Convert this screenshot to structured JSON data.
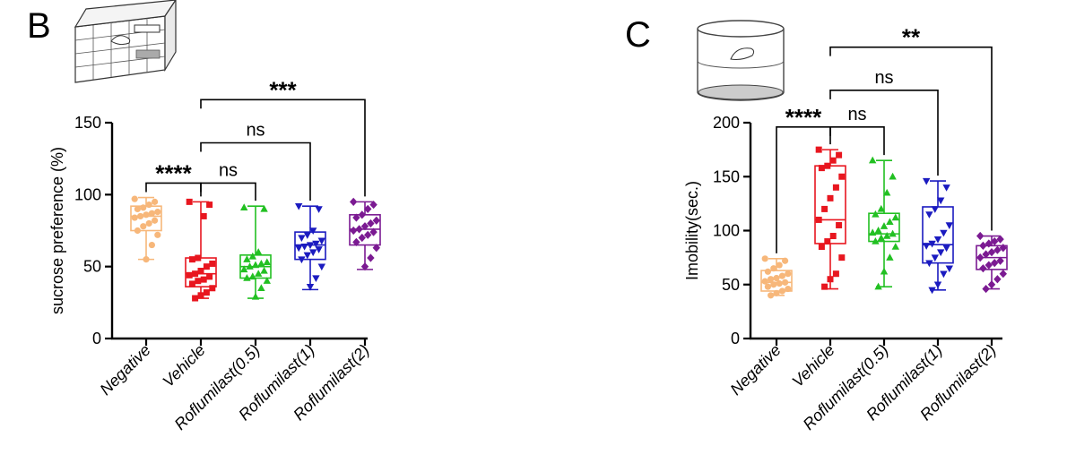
{
  "chart_data": [
    {
      "panel": "B",
      "type": "boxplot",
      "ylabel": "sucrose preference  (%)",
      "ylim": [
        0,
        150
      ],
      "yticks": [
        0,
        50,
        100,
        150
      ],
      "categories": [
        "Negative",
        "Vehicle",
        "Roflumilast(0.5)",
        "Roflumilast(1)",
        "Roflumilast(2)"
      ],
      "colors": [
        "#F7B77A",
        "#E8161F",
        "#22C022",
        "#1B1BC0",
        "#7B1A92"
      ],
      "boxes": [
        {
          "min": 55,
          "q1": 75,
          "median": 85,
          "q3": 92,
          "max": 98
        },
        {
          "min": 28,
          "q1": 36,
          "median": 45,
          "q3": 56,
          "max": 95
        },
        {
          "min": 28,
          "q1": 42,
          "median": 50,
          "q3": 58,
          "max": 92
        },
        {
          "min": 34,
          "q1": 55,
          "median": 65,
          "q3": 74,
          "max": 92
        },
        {
          "min": 48,
          "q1": 65,
          "median": 76,
          "q3": 86,
          "max": 95
        }
      ],
      "points": [
        [
          97,
          95,
          93,
          91,
          90,
          88,
          87,
          86,
          85,
          84,
          82,
          80,
          78,
          75,
          72,
          65,
          55
        ],
        [
          95,
          93,
          85,
          56,
          55,
          52,
          50,
          47,
          45,
          44,
          43,
          41,
          40,
          38,
          35,
          32,
          30,
          28
        ],
        [
          91,
          90,
          60,
          57,
          55,
          53,
          52,
          51,
          50,
          48,
          47,
          45,
          43,
          42,
          40,
          35,
          29
        ],
        [
          92,
          90,
          75,
          72,
          70,
          68,
          66,
          65,
          64,
          63,
          62,
          60,
          58,
          55,
          50,
          42,
          36
        ],
        [
          95,
          93,
          90,
          86,
          84,
          82,
          80,
          78,
          76,
          75,
          74,
          72,
          70,
          67,
          63,
          56,
          50
        ]
      ],
      "comparisons": [
        {
          "from": 0,
          "to": 1,
          "label": "****",
          "y": 108
        },
        {
          "from": 1,
          "to": 2,
          "label": "ns",
          "y": 108
        },
        {
          "from": 1,
          "to": 3,
          "label": "ns",
          "y": 136
        },
        {
          "from": 1,
          "to": 4,
          "label": "***",
          "y": 166
        }
      ]
    },
    {
      "panel": "C",
      "type": "boxplot",
      "ylabel": "Imobility(sec.)",
      "ylim": [
        0,
        200
      ],
      "yticks": [
        0,
        50,
        100,
        150,
        200
      ],
      "categories": [
        "Negative",
        "Vehicle",
        "Roflumilast(0.5)",
        "Roflumilast(1)",
        "Roflumilast(2)"
      ],
      "colors": [
        "#F7B77A",
        "#E8161F",
        "#22C022",
        "#1B1BC0",
        "#7B1A92"
      ],
      "boxes": [
        {
          "min": 40,
          "q1": 44,
          "median": 52,
          "q3": 63,
          "max": 74
        },
        {
          "min": 46,
          "q1": 88,
          "median": 110,
          "q3": 160,
          "max": 175
        },
        {
          "min": 48,
          "q1": 90,
          "median": 97,
          "q3": 116,
          "max": 165
        },
        {
          "min": 45,
          "q1": 70,
          "median": 87,
          "q3": 122,
          "max": 146
        },
        {
          "min": 46,
          "q1": 64,
          "median": 75,
          "q3": 86,
          "max": 95
        }
      ],
      "points": [
        [
          74,
          72,
          68,
          65,
          62,
          60,
          58,
          56,
          55,
          53,
          52,
          51,
          50,
          48,
          46,
          44,
          42,
          40
        ],
        [
          175,
          170,
          165,
          160,
          158,
          150,
          140,
          130,
          120,
          110,
          105,
          95,
          90,
          85,
          75,
          60,
          55,
          48
        ],
        [
          165,
          150,
          135,
          120,
          115,
          112,
          108,
          104,
          100,
          98,
          97,
          95,
          93,
          90,
          85,
          75,
          62,
          48
        ],
        [
          146,
          140,
          128,
          120,
          115,
          105,
          98,
          92,
          88,
          86,
          84,
          80,
          75,
          70,
          65,
          60,
          50,
          45
        ],
        [
          95,
          92,
          90,
          88,
          86,
          84,
          82,
          80,
          78,
          75,
          72,
          70,
          68,
          65,
          60,
          55,
          50,
          46
        ]
      ],
      "comparisons": [
        {
          "from": 0,
          "to": 1,
          "label": "****",
          "y": 196
        },
        {
          "from": 1,
          "to": 2,
          "label": "ns",
          "y": 196
        },
        {
          "from": 1,
          "to": 3,
          "label": "ns",
          "y": 230
        },
        {
          "from": 1,
          "to": 4,
          "label": "**",
          "y": 270
        }
      ]
    }
  ]
}
